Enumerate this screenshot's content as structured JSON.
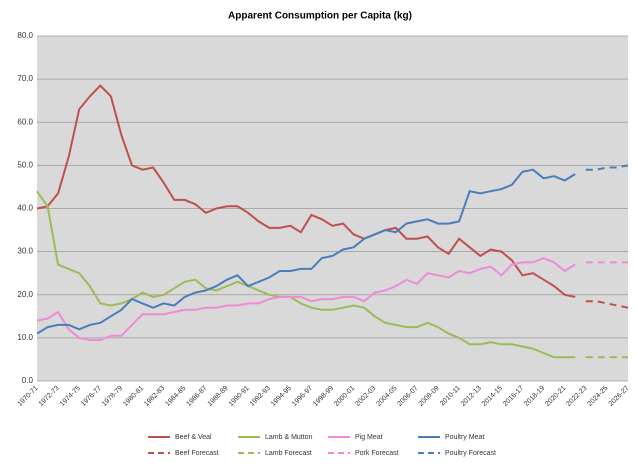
{
  "chart_data": {
    "type": "line",
    "title": "Apparent Consumption per Capita (kg)",
    "categories": [
      "1970-71",
      null,
      "1972-73",
      null,
      "1974-75",
      null,
      "1976-77",
      null,
      "1978-79",
      null,
      "1980-81",
      null,
      "1982-83",
      null,
      "1984-85",
      null,
      "1986-87",
      null,
      "1988-89",
      null,
      "1990-91",
      null,
      "1992-93",
      null,
      "1994-95",
      null,
      "1996-97",
      null,
      "1998-99",
      null,
      "2000-01",
      null,
      "2002-03",
      null,
      "2004-05",
      null,
      "2006-07",
      null,
      "2008-09",
      null,
      "2010-11",
      null,
      "2012-13",
      null,
      "2014-15",
      null,
      "2016-17",
      null,
      "2018-19",
      null,
      "2020-21",
      null,
      "2022-23",
      null,
      "2024-25",
      null,
      "2026-27"
    ],
    "ylim": [
      0,
      80
    ],
    "yticks": [
      {
        "value": 0,
        "label": "0.0"
      },
      {
        "value": 10,
        "label": "10.0"
      },
      {
        "value": 20,
        "label": "20.0"
      },
      {
        "value": 30,
        "label": "30.0"
      },
      {
        "value": 40,
        "label": "40.0"
      },
      {
        "value": 50,
        "label": "50.0"
      },
      {
        "value": 60,
        "label": "60.0"
      },
      {
        "value": 70,
        "label": "70.0"
      },
      {
        "value": 80,
        "label": "80.0"
      }
    ],
    "grid": true,
    "legend": "bottom",
    "series": [
      {
        "name": "Beef & Veal",
        "color": "#c0504d",
        "dashed": false,
        "values": [
          40,
          40.5,
          43.5,
          52,
          63,
          66,
          68.5,
          66,
          57,
          50,
          49,
          49.5,
          46,
          42,
          42,
          41,
          39,
          40,
          40.5,
          40.5,
          39,
          37,
          35.5,
          35.5,
          36,
          34.5,
          38.5,
          37.5,
          36,
          36.5,
          34,
          33,
          34,
          35,
          35.5,
          33,
          33,
          33.5,
          31,
          29.5,
          33,
          31,
          29,
          30.5,
          30,
          28,
          24.5,
          25,
          23.5,
          22,
          20,
          19.5,
          null,
          null,
          null,
          null,
          null
        ]
      },
      {
        "name": "Lamb & Mutton",
        "color": "#9bbb59",
        "dashed": false,
        "values": [
          44,
          40.5,
          27,
          26,
          25,
          22,
          18,
          17.5,
          18,
          19,
          20.5,
          19.5,
          20,
          21.5,
          23,
          23.5,
          21.5,
          21,
          22,
          23,
          22,
          21,
          20,
          19.5,
          19.5,
          18,
          17,
          16.5,
          16.5,
          17,
          17.5,
          17,
          15,
          13.5,
          13,
          12.5,
          12.5,
          13.5,
          12.5,
          11,
          10,
          8.5,
          8.5,
          9,
          8.5,
          8.5,
          8,
          7.5,
          6.5,
          5.5,
          5.5,
          5.5,
          null,
          null,
          null,
          null,
          null
        ]
      },
      {
        "name": "Pig Meat",
        "color": "#f08ad8",
        "dashed": false,
        "values": [
          14,
          14.5,
          16,
          12,
          10,
          9.5,
          9.5,
          10.5,
          10.5,
          13,
          15.5,
          15.5,
          15.5,
          16,
          16.5,
          16.5,
          17,
          17,
          17.5,
          17.5,
          18,
          18,
          19,
          19.5,
          19.5,
          19.5,
          18.5,
          19,
          19,
          19.5,
          19.5,
          18.5,
          20.5,
          21,
          22,
          23.5,
          22.5,
          25,
          24.5,
          24,
          25.5,
          25,
          26,
          26.5,
          24.5,
          27,
          27.5,
          27.5,
          28.5,
          27.5,
          25.5,
          27,
          null,
          null,
          null,
          null,
          null
        ]
      },
      {
        "name": "Poultry Meat",
        "color": "#4a7ebb",
        "dashed": false,
        "values": [
          11,
          12.5,
          13,
          13,
          12,
          13,
          13.5,
          15,
          16.5,
          19,
          18,
          17,
          18,
          17.5,
          19.5,
          20.5,
          21,
          22,
          23.5,
          24.5,
          22,
          23,
          24,
          25.5,
          25.5,
          26,
          26,
          28.5,
          29,
          30.5,
          31,
          33,
          34,
          35,
          34.5,
          36.5,
          37,
          37.5,
          36.5,
          36.5,
          37,
          44,
          43.5,
          44,
          44.5,
          45.5,
          48.5,
          49,
          47,
          47.5,
          46.5,
          48,
          null,
          null,
          null,
          null,
          null
        ]
      },
      {
        "name": "Beef Forecast",
        "color": "#c0504d",
        "dashed": true,
        "values": [
          null,
          null,
          null,
          null,
          null,
          null,
          null,
          null,
          null,
          null,
          null,
          null,
          null,
          null,
          null,
          null,
          null,
          null,
          null,
          null,
          null,
          null,
          null,
          null,
          null,
          null,
          null,
          null,
          null,
          null,
          null,
          null,
          null,
          null,
          null,
          null,
          null,
          null,
          null,
          null,
          null,
          null,
          null,
          null,
          null,
          null,
          null,
          null,
          null,
          null,
          null,
          null,
          18.5,
          18.5,
          18,
          17.5,
          17
        ]
      },
      {
        "name": "Lamb Forecast",
        "color": "#9bbb59",
        "dashed": true,
        "values": [
          null,
          null,
          null,
          null,
          null,
          null,
          null,
          null,
          null,
          null,
          null,
          null,
          null,
          null,
          null,
          null,
          null,
          null,
          null,
          null,
          null,
          null,
          null,
          null,
          null,
          null,
          null,
          null,
          null,
          null,
          null,
          null,
          null,
          null,
          null,
          null,
          null,
          null,
          null,
          null,
          null,
          null,
          null,
          null,
          null,
          null,
          null,
          null,
          null,
          null,
          null,
          null,
          5.5,
          5.5,
          5.5,
          5.5,
          5.5
        ]
      },
      {
        "name": "Pork Forecast",
        "color": "#f08ad8",
        "dashed": true,
        "values": [
          null,
          null,
          null,
          null,
          null,
          null,
          null,
          null,
          null,
          null,
          null,
          null,
          null,
          null,
          null,
          null,
          null,
          null,
          null,
          null,
          null,
          null,
          null,
          null,
          null,
          null,
          null,
          null,
          null,
          null,
          null,
          null,
          null,
          null,
          null,
          null,
          null,
          null,
          null,
          null,
          null,
          null,
          null,
          null,
          null,
          null,
          null,
          null,
          null,
          null,
          null,
          null,
          27.5,
          27.5,
          27.5,
          27.5,
          27.5
        ]
      },
      {
        "name": "Poultry Forecast",
        "color": "#4a7ebb",
        "dashed": true,
        "values": [
          null,
          null,
          null,
          null,
          null,
          null,
          null,
          null,
          null,
          null,
          null,
          null,
          null,
          null,
          null,
          null,
          null,
          null,
          null,
          null,
          null,
          null,
          null,
          null,
          null,
          null,
          null,
          null,
          null,
          null,
          null,
          null,
          null,
          null,
          null,
          null,
          null,
          null,
          null,
          null,
          null,
          null,
          null,
          null,
          null,
          null,
          null,
          null,
          null,
          null,
          null,
          null,
          49,
          49,
          49.5,
          49.5,
          50
        ]
      }
    ]
  }
}
